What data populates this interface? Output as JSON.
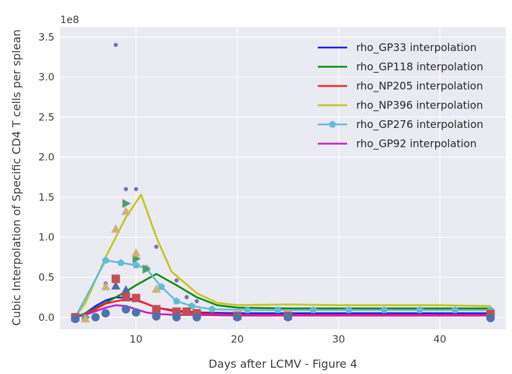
{
  "chart_data": {
    "type": "line",
    "title": "",
    "xlabel": "Days after LCMV - Figure 4",
    "ylabel": "Cubic Interpolation of Specific CD4 T cells per splean",
    "y_offset_label": "1e8",
    "xlim": [
      2.5,
      46.5
    ],
    "ylim": [
      -0.15,
      3.62
    ],
    "y_scale": "linear (values in units of 1e8)",
    "grid": true,
    "legend_position": "top-right",
    "x_ticks": [
      10,
      20,
      30,
      40
    ],
    "y_ticks": [
      0.0,
      0.5,
      1.0,
      1.5,
      2.0,
      2.5,
      3.0,
      3.5
    ],
    "x_tick_labels": [
      "10",
      "20",
      "30",
      "40"
    ],
    "y_tick_labels": [
      "0.0",
      "0.5",
      "1.0",
      "1.5",
      "2.0",
      "2.5",
      "3.0",
      "3.5"
    ],
    "series": [
      {
        "name": "rho_GP33 interpolation",
        "color": "#1c1cf0",
        "x": [
          4,
          5,
          6,
          7,
          8,
          9,
          10,
          11,
          12,
          14,
          16,
          20,
          25,
          30,
          35,
          40,
          45
        ],
        "y": [
          0.0,
          0.05,
          0.14,
          0.21,
          0.25,
          0.24,
          0.22,
          0.17,
          0.12,
          0.08,
          0.06,
          0.05,
          0.05,
          0.05,
          0.05,
          0.05,
          0.05
        ]
      },
      {
        "name": "rho_GP118 interpolation",
        "color": "#108a10",
        "x": [
          4,
          5,
          7,
          9,
          10,
          12,
          14,
          16,
          18,
          20,
          25,
          30,
          35,
          40,
          45
        ],
        "y": [
          0.0,
          0.05,
          0.18,
          0.32,
          0.4,
          0.54,
          0.4,
          0.25,
          0.15,
          0.12,
          0.11,
          0.11,
          0.11,
          0.11,
          0.11
        ]
      },
      {
        "name": "rho_NP205 interpolation",
        "color": "#f22020",
        "x": [
          4,
          5,
          6,
          7,
          8,
          9,
          10,
          11,
          12,
          14,
          16,
          20,
          25,
          30,
          35,
          40,
          45
        ],
        "y": [
          0.0,
          0.04,
          0.1,
          0.17,
          0.2,
          0.22,
          0.21,
          0.17,
          0.12,
          0.07,
          0.05,
          0.03,
          0.03,
          0.03,
          0.03,
          0.03,
          0.03
        ]
      },
      {
        "name": "rho_NP396 interpolation",
        "color": "#c4c41a",
        "x": [
          4,
          5,
          7,
          8,
          9,
          10.5,
          12,
          13.5,
          16,
          18,
          20,
          25,
          30,
          35,
          40,
          45
        ],
        "y": [
          0.0,
          0.18,
          0.75,
          1.0,
          1.25,
          1.53,
          1.0,
          0.57,
          0.3,
          0.18,
          0.15,
          0.16,
          0.15,
          0.15,
          0.15,
          0.14
        ]
      },
      {
        "name": "rho_GP276 interpolation",
        "color": "#62bcd4",
        "marker": "pentagon",
        "x": [
          4,
          7,
          8.5,
          10,
          11,
          12.5,
          14,
          15.5,
          17.5,
          21,
          24,
          27.5,
          31,
          34.5,
          38,
          41.5,
          45
        ],
        "y": [
          0.0,
          0.71,
          0.68,
          0.65,
          0.61,
          0.38,
          0.2,
          0.14,
          0.1,
          0.09,
          0.09,
          0.09,
          0.09,
          0.09,
          0.09,
          0.09,
          0.09
        ]
      },
      {
        "name": "rho_GP92 interpolation",
        "color": "#c41ec4",
        "x": [
          4,
          5,
          7,
          8,
          9,
          10,
          11,
          12,
          14,
          16,
          20,
          25,
          30,
          35,
          40,
          45
        ],
        "y": [
          0.0,
          0.03,
          0.12,
          0.15,
          0.14,
          0.1,
          0.06,
          0.04,
          0.03,
          0.03,
          0.02,
          0.02,
          0.02,
          0.02,
          0.02,
          0.02
        ]
      }
    ],
    "scatter": [
      {
        "marker": "circle-small",
        "color": "#7a6fb3",
        "x": [
          7,
          8,
          9,
          10,
          12,
          14,
          15,
          16
        ],
        "y": [
          0.42,
          3.4,
          1.6,
          1.6,
          0.88,
          0.46,
          0.25,
          0.2
        ]
      },
      {
        "marker": "triangle-right",
        "color": "#4f9e6c",
        "x": [
          5,
          9,
          10,
          11
        ],
        "y": [
          0.0,
          1.42,
          0.73,
          0.6
        ]
      },
      {
        "marker": "triangle-up",
        "color": "#ccb477",
        "x": [
          5,
          7,
          8,
          9,
          10,
          12
        ],
        "y": [
          -0.02,
          0.38,
          1.1,
          1.32,
          0.8,
          0.35
        ]
      },
      {
        "marker": "triangle-up",
        "color": "#4b6bb0",
        "x": [
          8,
          9
        ],
        "y": [
          0.39,
          0.34
        ]
      },
      {
        "marker": "square",
        "color": "#c44e52",
        "x": [
          4,
          8,
          9,
          10,
          12,
          14,
          15,
          16,
          20,
          25,
          45
        ],
        "y": [
          0.0,
          0.48,
          0.25,
          0.24,
          0.1,
          0.07,
          0.07,
          0.05,
          0.02,
          0.02,
          0.04
        ]
      },
      {
        "marker": "circle",
        "color": "#4c72b0",
        "x": [
          4,
          6,
          7,
          9,
          10,
          12,
          14,
          16,
          20,
          25,
          45
        ],
        "y": [
          -0.02,
          0.0,
          0.05,
          0.1,
          0.06,
          0.01,
          0.0,
          0.0,
          0.0,
          0.0,
          -0.01
        ]
      }
    ]
  }
}
